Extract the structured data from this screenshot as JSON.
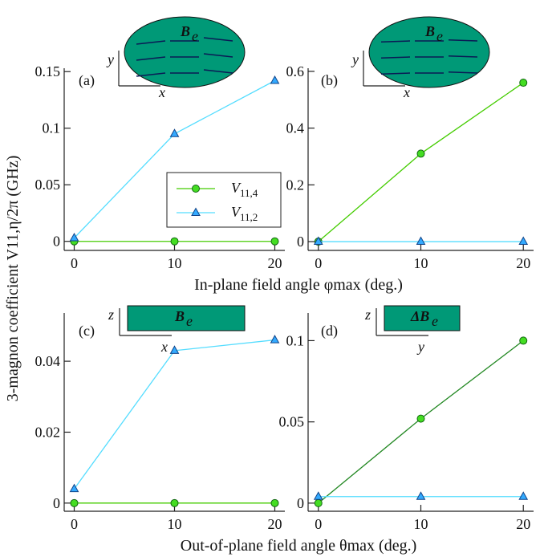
{
  "y_label": "3-magnon coefficient V11,η/2π (GHz)",
  "x_label_top": "In-plane field angle φmax (deg.)",
  "x_label_bottom": "Out-of-plane field angle θmax (deg.)",
  "chart_data": [
    {
      "type": "line",
      "panel_label": "(a)",
      "x": [
        0,
        10,
        20
      ],
      "xlim": [
        -1,
        21
      ],
      "xticks": [
        0,
        10,
        20
      ],
      "ylim": [
        -0.008,
        0.153
      ],
      "yticks": [
        0,
        0.05,
        0.1,
        0.15
      ],
      "legend": "center",
      "inset": {
        "shape": "ellipse",
        "symbol": "B",
        "sub": "e",
        "axes": [
          "y",
          "x"
        ]
      },
      "series": [
        {
          "name": "V11,4",
          "color": "#44cc00",
          "marker_color": "#44dd22",
          "marker": "circle",
          "values": [
            0,
            0,
            0
          ]
        },
        {
          "name": "V11,2",
          "color": "#55ddff",
          "marker_color": "#33aaff",
          "marker": "triangle",
          "values": [
            0.003,
            0.095,
            0.142
          ]
        }
      ]
    },
    {
      "type": "line",
      "panel_label": "(b)",
      "x": [
        0,
        10,
        20
      ],
      "xlim": [
        -1,
        21
      ],
      "xticks": [
        0,
        10,
        20
      ],
      "ylim": [
        -0.031,
        0.611
      ],
      "yticks": [
        0,
        0.2,
        0.4,
        0.6
      ],
      "inset": {
        "shape": "ellipse",
        "symbol": "B",
        "sub": "e",
        "axes": [
          "y",
          "x"
        ]
      },
      "series": [
        {
          "name": "V11,4",
          "color": "#44cc00",
          "marker_color": "#44dd22",
          "marker": "circle",
          "values": [
            0,
            0.31,
            0.56
          ]
        },
        {
          "name": "V11,2",
          "color": "#55ddff",
          "marker_color": "#33aaff",
          "marker": "triangle",
          "values": [
            0,
            0,
            0
          ]
        }
      ]
    },
    {
      "type": "line",
      "panel_label": "(c)",
      "x": [
        0,
        10,
        20
      ],
      "xlim": [
        -1,
        21
      ],
      "xticks": [
        0,
        10,
        20
      ],
      "ylim": [
        -0.0023,
        0.0536
      ],
      "yticks": [
        0,
        0.02,
        0.04
      ],
      "inset": {
        "shape": "rect",
        "symbol": "B",
        "sub": "e",
        "axes": [
          "z",
          "x"
        ]
      },
      "series": [
        {
          "name": "V11,4",
          "color": "#44cc00",
          "marker_color": "#44dd22",
          "marker": "circle",
          "values": [
            0,
            0,
            0
          ]
        },
        {
          "name": "V11,2",
          "color": "#55ddff",
          "marker_color": "#33aaff",
          "marker": "triangle",
          "values": [
            0.004,
            0.043,
            0.046
          ]
        }
      ]
    },
    {
      "type": "line",
      "panel_label": "(d)",
      "x": [
        0,
        10,
        20
      ],
      "xlim": [
        -1,
        21
      ],
      "xticks": [
        0,
        10,
        20
      ],
      "ylim": [
        -0.005,
        0.117
      ],
      "yticks": [
        0,
        0.05,
        0.1
      ],
      "inset": {
        "shape": "rect",
        "symbol": "ΔB",
        "sub": "e",
        "axes": [
          "z",
          "y"
        ]
      },
      "series": [
        {
          "name": "V11,4",
          "color": "#228822",
          "marker_color": "#44dd22",
          "marker": "circle",
          "values": [
            0,
            0.052,
            0.1
          ]
        },
        {
          "name": "V11,2",
          "color": "#55ddff",
          "marker_color": "#33aaff",
          "marker": "triangle",
          "values": [
            0.004,
            0.004,
            0.004
          ]
        }
      ]
    }
  ]
}
